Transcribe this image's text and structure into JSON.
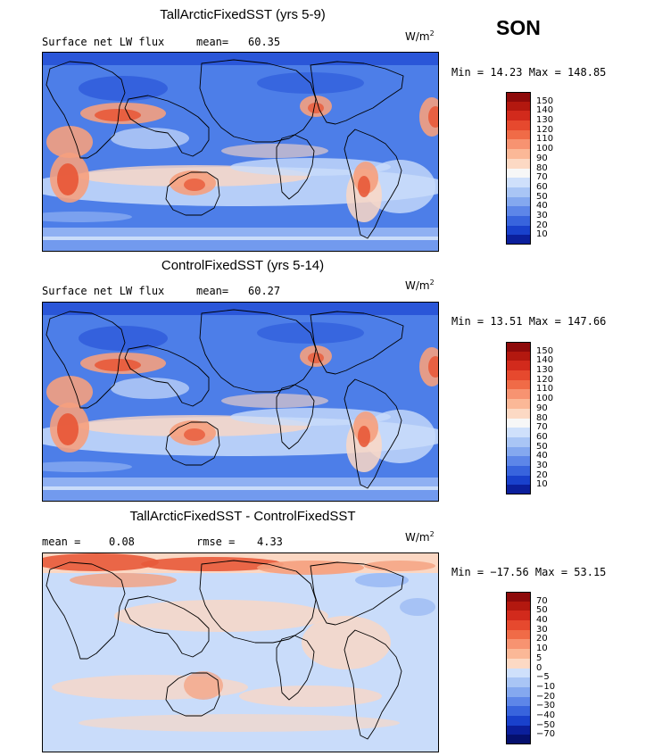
{
  "season": "SON",
  "colors": {
    "ocean_mid": "#4d7ee8",
    "ocean_deep": "#2a56d8",
    "ocean_light": "#8fb0f2",
    "pale_blue": "#c9dcfa",
    "neutral": "#f4f1ee",
    "pale_red": "#fbd7c3",
    "salmon": "#f5a07e",
    "red": "#e85a3a",
    "dark_red": "#c42c1f",
    "coast": "#000000"
  },
  "panels": [
    {
      "title": "TallArcticFixedSST (yrs 5-9)",
      "left_label": "Surface net LW flux",
      "stat_label": "mean=",
      "stat_value": "60.35",
      "units": "W/m",
      "units_exp": "2",
      "minmax": "Min =  14.23 Max = 148.85",
      "colorbar": {
        "labels": [
          "150",
          "140",
          "130",
          "120",
          "110",
          "100",
          "90",
          "80",
          "70",
          "60",
          "50",
          "40",
          "30",
          "20",
          "10"
        ],
        "colors": [
          "#8e0a0a",
          "#b3180f",
          "#d22a1c",
          "#e6492e",
          "#f06b47",
          "#f79371",
          "#fbb897",
          "#fcd9c4",
          "#f7f7f7",
          "#cfe0fb",
          "#a9c5f5",
          "#84a8ef",
          "#5d86e8",
          "#3864dd",
          "#1941cc",
          "#0b1f9c"
        ]
      },
      "chart_data": {
        "type": "map",
        "title": "TallArcticFixedSST (yrs 5-9)",
        "variable": "Surface net LW flux",
        "units": "W/m2",
        "mean": 60.35,
        "min": 14.23,
        "max": 148.85,
        "contour_levels": [
          10,
          20,
          30,
          40,
          50,
          60,
          70,
          80,
          90,
          100,
          110,
          120,
          130,
          140,
          150
        ]
      }
    },
    {
      "title": "ControlFixedSST (yrs 5-14)",
      "left_label": "Surface net LW flux",
      "stat_label": "mean=",
      "stat_value": "60.27",
      "units": "W/m",
      "units_exp": "2",
      "minmax": "Min =  13.51 Max = 147.66",
      "colorbar": {
        "labels": [
          "150",
          "140",
          "130",
          "120",
          "110",
          "100",
          "90",
          "80",
          "70",
          "60",
          "50",
          "40",
          "30",
          "20",
          "10"
        ],
        "colors": [
          "#8e0a0a",
          "#b3180f",
          "#d22a1c",
          "#e6492e",
          "#f06b47",
          "#f79371",
          "#fbb897",
          "#fcd9c4",
          "#f7f7f7",
          "#cfe0fb",
          "#a9c5f5",
          "#84a8ef",
          "#5d86e8",
          "#3864dd",
          "#1941cc",
          "#0b1f9c"
        ]
      },
      "chart_data": {
        "type": "map",
        "title": "ControlFixedSST (yrs 5-14)",
        "variable": "Surface net LW flux",
        "units": "W/m2",
        "mean": 60.27,
        "min": 13.51,
        "max": 147.66,
        "contour_levels": [
          10,
          20,
          30,
          40,
          50,
          60,
          70,
          80,
          90,
          100,
          110,
          120,
          130,
          140,
          150
        ]
      }
    },
    {
      "title": "TallArcticFixedSST - ControlFixedSST",
      "left_label": "mean =",
      "left_value": "0.08",
      "stat_label": "rmse =",
      "stat_value": "4.33",
      "units": "W/m",
      "units_exp": "2",
      "minmax": "Min = −17.56 Max =  53.15",
      "colorbar": {
        "labels": [
          "70",
          "50",
          "40",
          "30",
          "20",
          "10",
          "5",
          "0",
          "−5",
          "−10",
          "−20",
          "−30",
          "−40",
          "−50",
          "−70"
        ],
        "colors": [
          "#8e0a0a",
          "#b3180f",
          "#d22a1c",
          "#e6492e",
          "#f06b47",
          "#f79371",
          "#fbb897",
          "#fcd9c4",
          "#cfe0fb",
          "#a9c5f5",
          "#84a8ef",
          "#5d86e8",
          "#3864dd",
          "#1941cc",
          "#0b1f9c",
          "#05106e"
        ]
      },
      "chart_data": {
        "type": "map",
        "title": "TallArcticFixedSST - ControlFixedSST",
        "units": "W/m2",
        "mean": 0.08,
        "rmse": 4.33,
        "min": -17.56,
        "max": 53.15,
        "contour_levels": [
          -70,
          -50,
          -40,
          -30,
          -20,
          -10,
          -5,
          0,
          5,
          10,
          20,
          30,
          40,
          50,
          70
        ]
      }
    }
  ]
}
